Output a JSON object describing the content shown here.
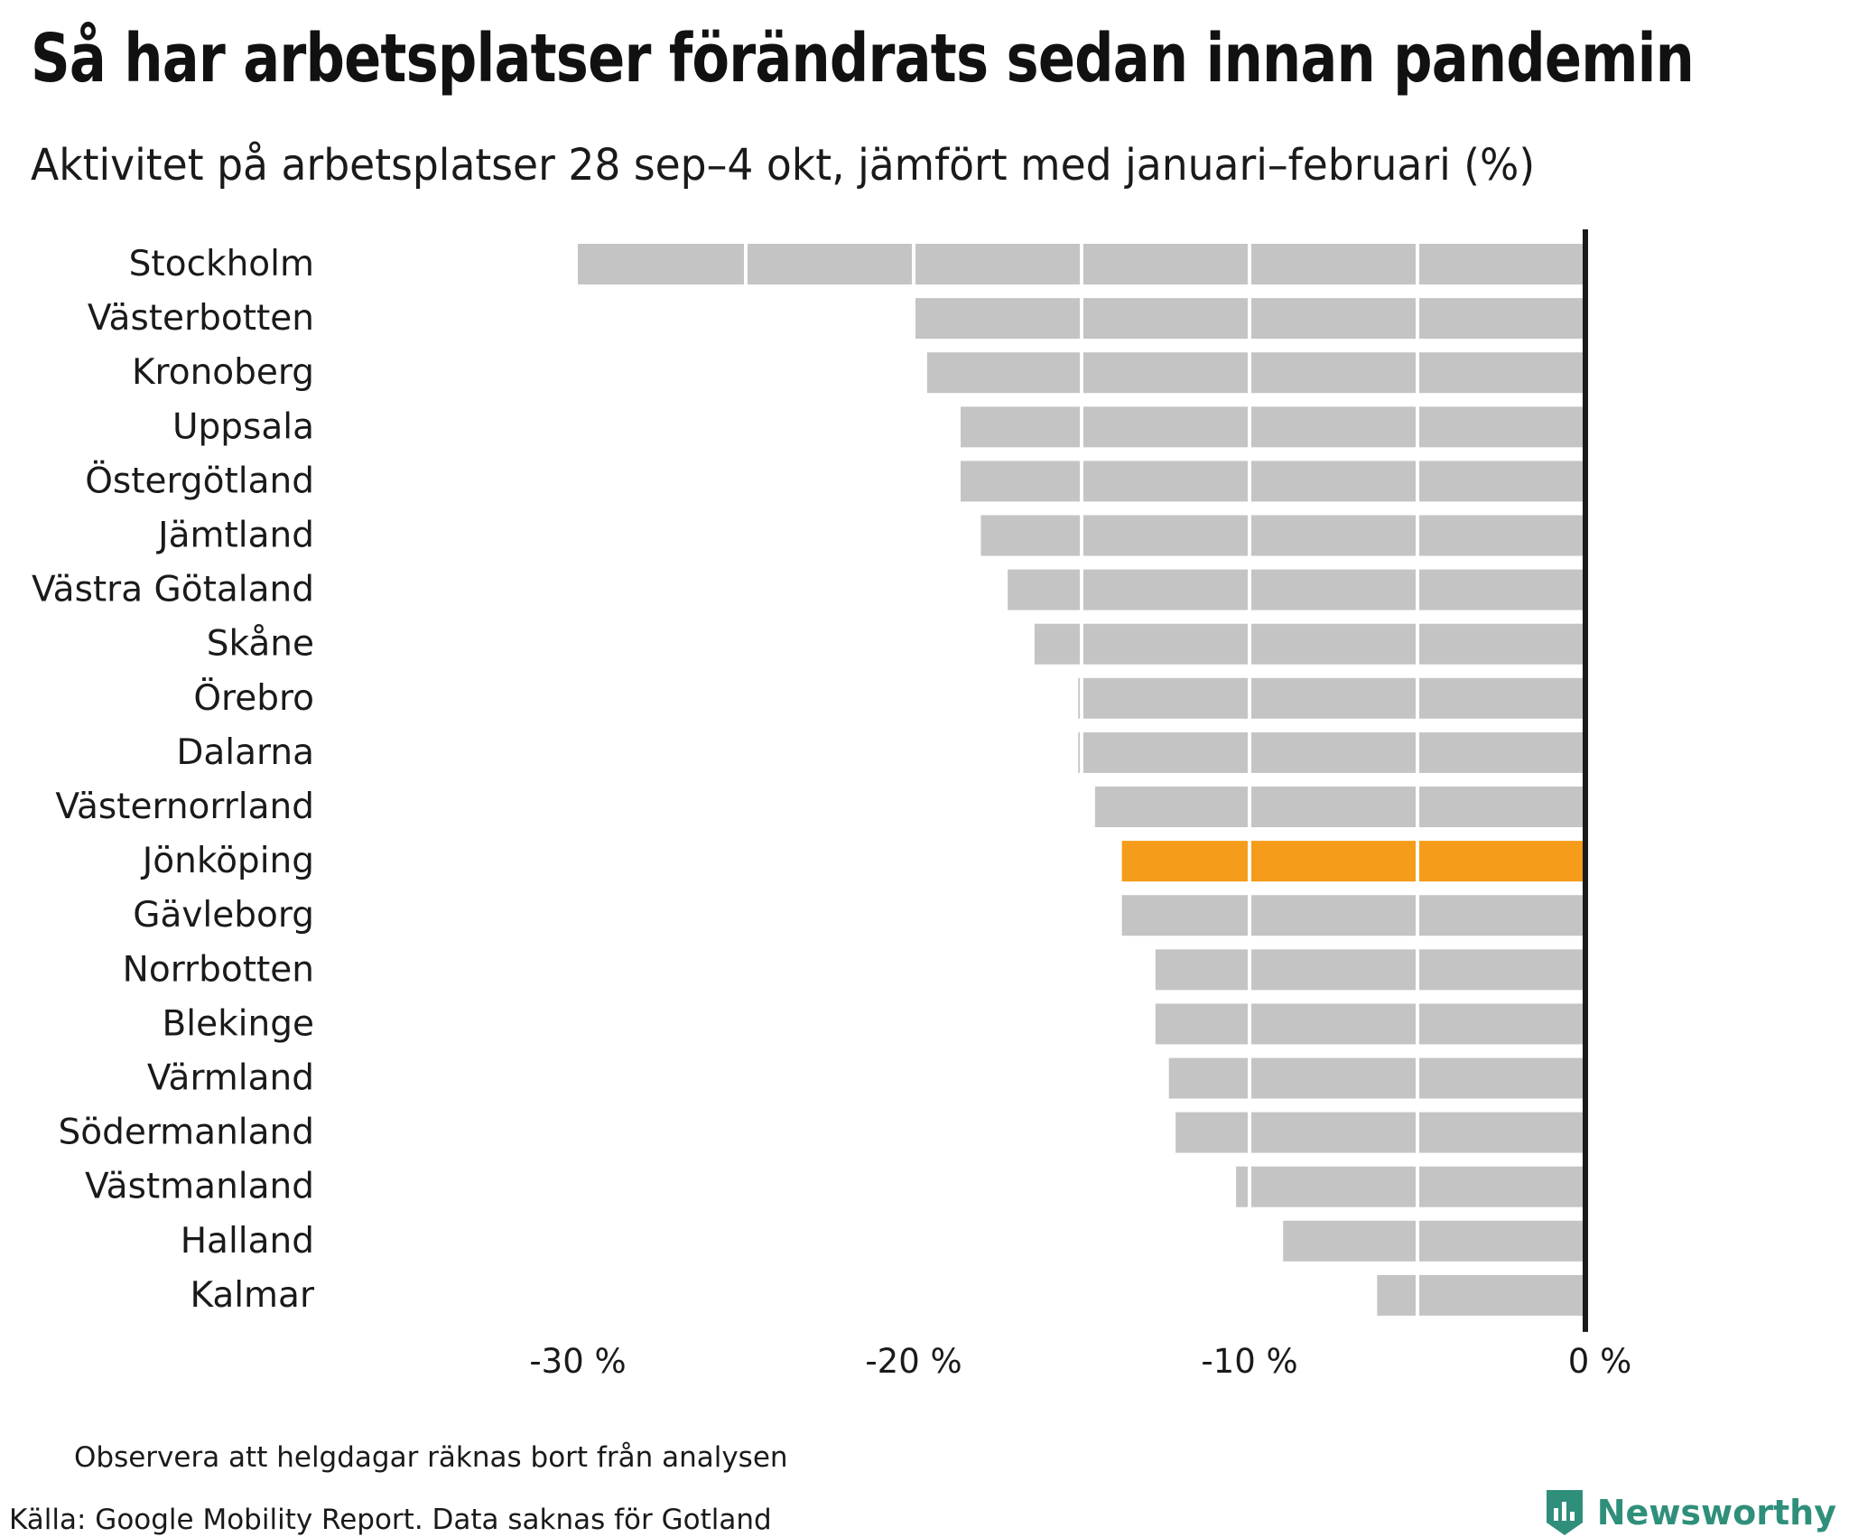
{
  "header": {
    "title": "Så har arbetsplatser förändrats sedan innan pandemin",
    "subtitle": "Aktivitet på arbetsplatser 28 sep–4 okt, jämfört med januari–februari (%)"
  },
  "footer": {
    "note": "Observera att helgdagar räknas bort från analysen",
    "source": "Källa: Google Mobility Report. Data saknas för Gotland",
    "brand": "Newsworthy"
  },
  "colors": {
    "bar": "#c4c4c4",
    "highlight": "#f59c1a",
    "zero_line": "#1a1a1a",
    "brand": "#2f8f7b"
  },
  "chart_data": {
    "type": "bar",
    "orientation": "horizontal",
    "categories": [
      "Stockholm",
      "Västerbotten",
      "Kronoberg",
      "Uppsala",
      "Östergötland",
      "Jämtland",
      "Västra Götaland",
      "Skåne",
      "Örebro",
      "Dalarna",
      "Västernorrland",
      "Jönköping",
      "Gävleborg",
      "Norrbotten",
      "Blekinge",
      "Värmland",
      "Södermanland",
      "Västmanland",
      "Halland",
      "Kalmar"
    ],
    "values": [
      -30,
      -20,
      -19.6,
      -18.6,
      -18.6,
      -18,
      -17.2,
      -16.4,
      -15.1,
      -15.1,
      -14.6,
      -13.8,
      -13.8,
      -12.8,
      -12.8,
      -12.4,
      -12.2,
      -10.4,
      -9,
      -6.2
    ],
    "highlight": "Jönköping",
    "xlim": [
      -30,
      0
    ],
    "xticks": [
      -30,
      -20,
      -10,
      0
    ],
    "xtick_labels": [
      "-30 %",
      "-20 %",
      "-10 %",
      "0 %"
    ],
    "grid_step": 5,
    "grid": true,
    "legend": false
  }
}
